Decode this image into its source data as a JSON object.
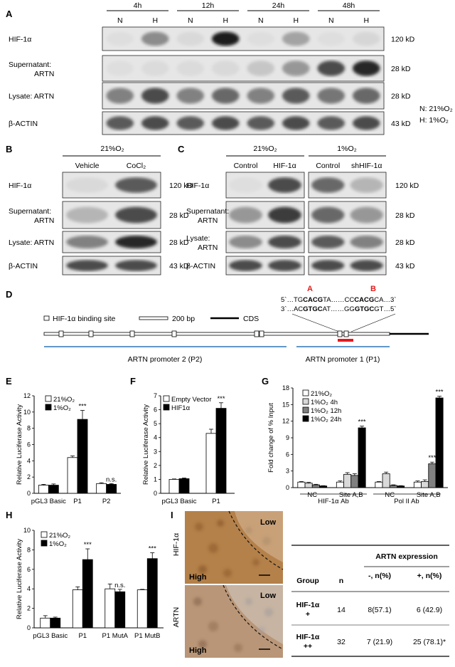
{
  "panels": {
    "A": {
      "letter": "A",
      "timepoints": [
        "4h",
        "12h",
        "24h",
        "48h"
      ],
      "lanes": [
        "N",
        "H",
        "N",
        "H",
        "N",
        "H",
        "N",
        "H"
      ],
      "rows": [
        {
          "label_lines": [
            "HIF-1α"
          ],
          "size": "120 kD",
          "bands": [
            0.05,
            0.55,
            0.1,
            0.95,
            0.05,
            0.45,
            0.05,
            0.12
          ]
        },
        {
          "label_lines": [
            "Supernatant:",
            "ARTN"
          ],
          "size": "28 kD",
          "bands": [
            0.05,
            0.08,
            0.08,
            0.1,
            0.25,
            0.5,
            0.8,
            0.9
          ]
        },
        {
          "label_lines": [
            "Lysate: ARTN"
          ],
          "size": "28 kD",
          "bands": [
            0.6,
            0.8,
            0.6,
            0.7,
            0.6,
            0.75,
            0.65,
            0.7
          ]
        },
        {
          "label_lines": [
            "β-ACTIN"
          ],
          "size": "43 kD",
          "bands": [
            0.75,
            0.8,
            0.75,
            0.8,
            0.75,
            0.8,
            0.75,
            0.8
          ]
        }
      ],
      "legend": [
        "N: 21%O₂",
        "H: 1%O₂"
      ]
    },
    "B": {
      "letter": "B",
      "condition": "21%O₂",
      "lanes": [
        "Vehicle",
        "CoCl₂"
      ],
      "rows": [
        {
          "label_lines": [
            "HIF-1α"
          ],
          "size": "120 kD",
          "bands": [
            0.1,
            0.75
          ]
        },
        {
          "label_lines": [
            "Supernatant:",
            "ARTN"
          ],
          "size": "28 kD",
          "bands": [
            0.35,
            0.8
          ]
        },
        {
          "label_lines": [
            "Lysate: ARTN"
          ],
          "size": "28 kD",
          "bands": [
            0.6,
            0.9
          ]
        },
        {
          "label_lines": [
            "β-ACTIN"
          ],
          "size": "43 kD",
          "bands": [
            0.8,
            0.8
          ]
        }
      ]
    },
    "C": {
      "letter": "C",
      "conditions": [
        "21%O₂",
        "1%O₂"
      ],
      "lanes": [
        "Control",
        "HIF-1α",
        "Control",
        "shHIF-1α"
      ],
      "rows": [
        {
          "label_lines": [
            "HIF-1α"
          ],
          "size": "120 kD",
          "bands": [
            0.05,
            0.8,
            0.7,
            0.35
          ]
        },
        {
          "label_lines": [
            "Supernatant:",
            "ARTN"
          ],
          "size": "28 kD",
          "bands": [
            0.5,
            0.85,
            0.7,
            0.5
          ]
        },
        {
          "label_lines": [
            "Lysate:",
            "ARTN"
          ],
          "size": "28 kD",
          "bands": [
            0.55,
            0.8,
            0.75,
            0.6
          ]
        },
        {
          "label_lines": [
            "β-ACTIN"
          ],
          "size": "43 kD",
          "bands": [
            0.8,
            0.8,
            0.8,
            0.8
          ]
        }
      ]
    },
    "D": {
      "letter": "D",
      "legend_site": "HIF-1α binding site",
      "legend_scale": "200 bp",
      "legend_cds": "CDS",
      "site_a": "A",
      "site_b": "B",
      "seq1_prefix": "5`…TG",
      "seq1_a": "CACG",
      "seq1_mid": "TA……CC",
      "seq1_b": "CACG",
      "seq1_suffix": "CA…3`",
      "seq2_prefix": "3`…AC",
      "seq2_a": "GTGC",
      "seq2_mid": "AT……GG",
      "seq2_b": "GTGC",
      "seq2_suffix": "GT…5`",
      "promoter2": "ARTN promoter 2 (P2)",
      "promoter1": "ARTN promoter 1 (P1)"
    },
    "E": {
      "letter": "E"
    },
    "F": {
      "letter": "F"
    },
    "G": {
      "letter": "G",
      "group_labels": [
        "HIF-1α Ab",
        "Pol II Ab"
      ]
    },
    "H": {
      "letter": "H"
    },
    "I": {
      "letter": "I",
      "img_labels": [
        "HIF-1α",
        "ARTN"
      ],
      "low": "Low",
      "high": "High",
      "table": {
        "title": "ARTN expression",
        "col_group": "Group",
        "col_n": "n",
        "col_neg": "-, n(%)",
        "col_pos": "+, n(%)",
        "rows": [
          {
            "group_lines": [
              "HIF-1α",
              "+"
            ],
            "n": "14",
            "neg": "8(57.1)",
            "pos": "6 (42.9)"
          },
          {
            "group_lines": [
              "HIF-1α",
              "++"
            ],
            "n": "32",
            "neg": "7 (21.9)",
            "pos": "25 (78.1)*"
          }
        ]
      }
    }
  },
  "chart_data": [
    {
      "id": "E",
      "type": "bar",
      "ylabel": "Relative Luciferase Activity",
      "ylim": [
        0,
        12
      ],
      "yticks": [
        0,
        2,
        4,
        6,
        8,
        10,
        12
      ],
      "categories": [
        "pGL3 Basic",
        "P1",
        "P2"
      ],
      "series": [
        {
          "name": "21%O₂",
          "fill": "#ffffff",
          "values": [
            1.0,
            4.4,
            1.2
          ],
          "errors": [
            0.1,
            0.2,
            0.1
          ]
        },
        {
          "name": "1%O₂",
          "fill": "#000000",
          "values": [
            1.0,
            9.1,
            1.1
          ],
          "errors": [
            0.15,
            1.1,
            0.1
          ]
        }
      ],
      "annotations": [
        {
          "category": 1,
          "series": 1,
          "text": "***"
        },
        {
          "category": 2,
          "series": 1,
          "text": "n.s."
        }
      ]
    },
    {
      "id": "F",
      "type": "bar",
      "ylabel": "Relative Luciferase Activity",
      "ylim": [
        0,
        7
      ],
      "yticks": [
        0,
        1,
        2,
        3,
        4,
        5,
        6,
        7
      ],
      "categories": [
        "pGL3 Basic",
        "P1"
      ],
      "series": [
        {
          "name": "Empty Vector",
          "fill": "#ffffff",
          "values": [
            1.0,
            4.3
          ],
          "errors": [
            0.03,
            0.3
          ]
        },
        {
          "name": "HIF1α",
          "fill": "#000000",
          "values": [
            1.05,
            6.1
          ],
          "errors": [
            0.05,
            0.4
          ]
        }
      ],
      "annotations": [
        {
          "category": 1,
          "series": 1,
          "text": "***"
        }
      ]
    },
    {
      "id": "G",
      "type": "bar",
      "ylabel": "Fold change of % Input",
      "ylim": [
        0,
        18
      ],
      "yticks": [
        0,
        3,
        6,
        9,
        12,
        15,
        18
      ],
      "categories": [
        "NC",
        "Site A,B",
        "NC",
        "Site A,B"
      ],
      "series": [
        {
          "name": "21%O₂",
          "fill": "#ffffff",
          "values": [
            1.0,
            1.0,
            1.0,
            1.0
          ],
          "errors": [
            0.1,
            0.2,
            0.1,
            0.2
          ]
        },
        {
          "name": "1%O₂ 4h",
          "fill": "#d9d9d9",
          "values": [
            0.8,
            2.4,
            2.5,
            1.1
          ],
          "errors": [
            0.15,
            0.3,
            0.3,
            0.3
          ]
        },
        {
          "name": "1%O₂ 12h",
          "fill": "#808080",
          "values": [
            0.5,
            2.2,
            0.4,
            4.3
          ],
          "errors": [
            0.1,
            0.3,
            0.1,
            0.3
          ]
        },
        {
          "name": "1%O₂ 24h",
          "fill": "#000000",
          "values": [
            0.3,
            10.8,
            0.3,
            16.2
          ],
          "errors": [
            0.05,
            0.3,
            0.05,
            0.3
          ]
        }
      ],
      "annotations": [
        {
          "category": 1,
          "series": 3,
          "text": "***"
        },
        {
          "category": 3,
          "series": 2,
          "text": "***"
        },
        {
          "category": 3,
          "series": 3,
          "text": "***"
        }
      ]
    },
    {
      "id": "H",
      "type": "bar",
      "ylabel": "Relative Luciferase Activity",
      "ylim": [
        0,
        10
      ],
      "yticks": [
        0,
        2,
        4,
        6,
        8,
        10
      ],
      "categories": [
        "pGL3 Basic",
        "P1",
        "P1 MutA",
        "P1 MutB"
      ],
      "series": [
        {
          "name": "21%O₂",
          "fill": "#ffffff",
          "values": [
            1.0,
            3.9,
            4.0,
            3.9
          ],
          "errors": [
            0.25,
            0.3,
            0.5,
            0.05
          ]
        },
        {
          "name": "1%O₂",
          "fill": "#000000",
          "values": [
            1.0,
            7.0,
            3.7,
            7.1
          ],
          "errors": [
            0.1,
            1.1,
            0.25,
            0.6
          ]
        }
      ],
      "annotations": [
        {
          "category": 1,
          "series": 1,
          "text": "***"
        },
        {
          "category": 2,
          "series": 1,
          "text": "n.s."
        },
        {
          "category": 3,
          "series": 1,
          "text": "***"
        }
      ]
    }
  ]
}
